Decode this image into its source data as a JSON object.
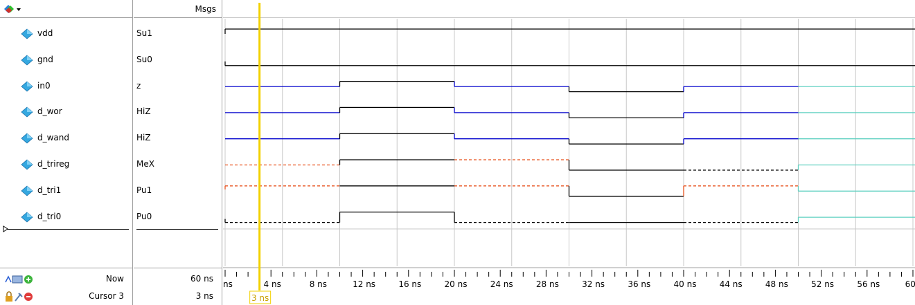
{
  "header": {
    "msgs_label": "Msgs"
  },
  "signals": [
    {
      "name": "vdd",
      "value": "Su1"
    },
    {
      "name": "gnd",
      "value": "Su0"
    },
    {
      "name": "in0",
      "value": "z"
    },
    {
      "name": "d_wor",
      "value": "HiZ"
    },
    {
      "name": "d_wand",
      "value": "HiZ"
    },
    {
      "name": "d_trireg",
      "value": "MeX"
    },
    {
      "name": "d_tri1",
      "value": "Pu1"
    },
    {
      "name": "d_tri0",
      "value": "Pu0"
    }
  ],
  "footer": {
    "now_label": "Now",
    "now_value": "60 ns",
    "cursor_label": "Cursor 3",
    "cursor_value": "3 ns"
  },
  "timeline": {
    "tick_labels": [
      "ns",
      "4 ns",
      "8 ns",
      "12 ns",
      "16 ns",
      "20 ns",
      "24 ns",
      "28 ns",
      "32 ns",
      "36 ns",
      "40 ns",
      "44 ns",
      "48 ns",
      "52 ns",
      "56 ns",
      "60 n"
    ],
    "end_ns": 60,
    "cursor_ns": 3,
    "cursor_tag": "3 ns"
  },
  "colors": {
    "cursor": "#f2d100",
    "wave_black": "#000000",
    "wave_blue": "#0000cc",
    "wave_red": "#e8501c",
    "wave_teal": "#5fd0c0",
    "grid": "#c8c8c8",
    "diamond": "#35a8e0"
  },
  "icons": {
    "toolbar": "wave-insert-icon",
    "footer_now": "waveform-tools-icon",
    "footer_cursor": "cursor-lock-icon"
  }
}
